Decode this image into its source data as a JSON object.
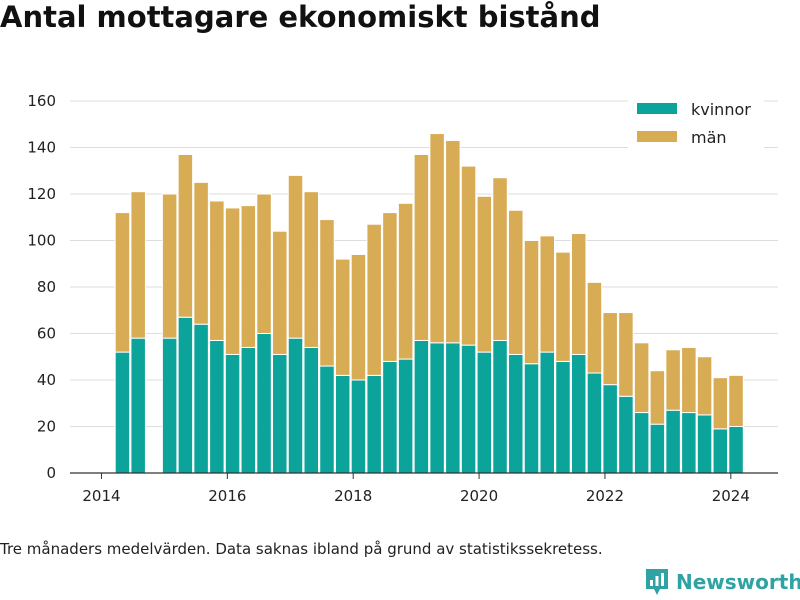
{
  "header": {
    "title": "Antal mottagare ekonomiskt bistånd"
  },
  "footnote": "Tre månaders medelvärden. Data saknas ibland på grund av statistikssekretess.",
  "brand": {
    "name": "Newsworthy",
    "icon": "newsworthy-logo-icon",
    "color": "#2fa3a3"
  },
  "colors": {
    "kvinnor": "#0ba39a",
    "man": "#d8ab55",
    "grid": "#dddddd",
    "axis": "#333333"
  },
  "chart_data": {
    "type": "bar",
    "stacked": true,
    "title": "Antal mottagare ekonomiskt bistånd",
    "xlabel": "",
    "ylabel": "",
    "ylim": [
      0,
      160
    ],
    "yticks": [
      0,
      20,
      40,
      60,
      80,
      100,
      120,
      140,
      160
    ],
    "xlim": [
      2013.5,
      2024.75
    ],
    "xticks": [
      2014,
      2016,
      2018,
      2020,
      2022,
      2024
    ],
    "grid": true,
    "legend_position": "top-right",
    "x": [
      "2014-05",
      "2014-08",
      "2015-02",
      "2015-05",
      "2015-08",
      "2015-11",
      "2016-02",
      "2016-05",
      "2016-08",
      "2016-11",
      "2017-02",
      "2017-05",
      "2017-08",
      "2017-11",
      "2018-02",
      "2018-05",
      "2018-08",
      "2018-11",
      "2019-02",
      "2019-05",
      "2019-08",
      "2019-11",
      "2020-02",
      "2020-05",
      "2020-08",
      "2020-11",
      "2021-02",
      "2021-05",
      "2021-08",
      "2021-11",
      "2022-02",
      "2022-05",
      "2022-08",
      "2022-11",
      "2023-02",
      "2023-05",
      "2023-08",
      "2023-11",
      "2024-02"
    ],
    "series": [
      {
        "name": "kvinnor",
        "color": "#0ba39a",
        "values": [
          52,
          58,
          58,
          67,
          64,
          57,
          51,
          54,
          60,
          51,
          58,
          54,
          46,
          42,
          40,
          42,
          48,
          49,
          57,
          56,
          56,
          55,
          52,
          57,
          51,
          47,
          52,
          48,
          51,
          43,
          38,
          33,
          26,
          21,
          27,
          26,
          25,
          19,
          20
        ]
      },
      {
        "name": "män",
        "color": "#d8ab55",
        "values": [
          60,
          63,
          62,
          70,
          61,
          60,
          63,
          61,
          60,
          53,
          70,
          67,
          63,
          50,
          54,
          65,
          64,
          67,
          80,
          90,
          87,
          77,
          67,
          70,
          62,
          53,
          50,
          47,
          52,
          39,
          31,
          36,
          30,
          23,
          26,
          28,
          25,
          22,
          22
        ]
      }
    ]
  }
}
